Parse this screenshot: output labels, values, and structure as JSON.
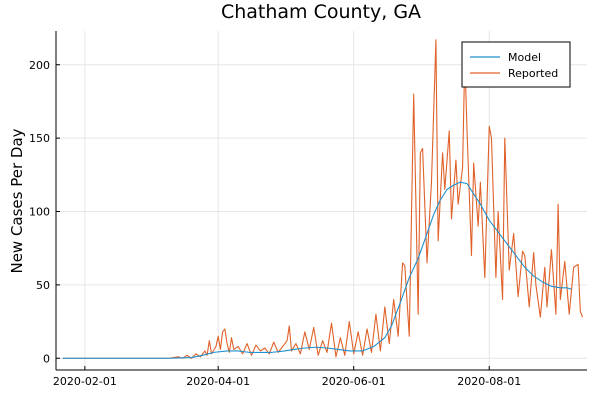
{
  "chart_data": {
    "type": "line",
    "title": "Chatham County, GA",
    "xlabel": "",
    "ylabel": "New Cases Per Day",
    "x_axis": {
      "type": "date",
      "range": [
        "2020-01-19",
        "2020-09-14"
      ],
      "ticks": [
        "2020-02-01",
        "2020-04-01",
        "2020-06-01",
        "2020-08-01"
      ]
    },
    "y_axis": {
      "range": [
        -8,
        223
      ],
      "ticks": [
        0,
        50,
        100,
        150,
        200
      ]
    },
    "grid": true,
    "legend": {
      "placement": "top-right"
    },
    "series": [
      {
        "name": "Model",
        "color": "#1e90cc",
        "points": [
          [
            "2020-01-22",
            0
          ],
          [
            "2020-02-15",
            0
          ],
          [
            "2020-03-10",
            0
          ],
          [
            "2020-03-20",
            0.5
          ],
          [
            "2020-03-25",
            2
          ],
          [
            "2020-03-30",
            4
          ],
          [
            "2020-04-05",
            5
          ],
          [
            "2020-04-10",
            5
          ],
          [
            "2020-04-15",
            4
          ],
          [
            "2020-04-20",
            4
          ],
          [
            "2020-04-25",
            4
          ],
          [
            "2020-05-01",
            5
          ],
          [
            "2020-05-05",
            6
          ],
          [
            "2020-05-10",
            7
          ],
          [
            "2020-05-15",
            7.5
          ],
          [
            "2020-05-20",
            7
          ],
          [
            "2020-05-25",
            6
          ],
          [
            "2020-05-30",
            5
          ],
          [
            "2020-06-05",
            5
          ],
          [
            "2020-06-10",
            8
          ],
          [
            "2020-06-15",
            14
          ],
          [
            "2020-06-18",
            22
          ],
          [
            "2020-06-22",
            38
          ],
          [
            "2020-06-26",
            55
          ],
          [
            "2020-06-30",
            68
          ],
          [
            "2020-07-04",
            85
          ],
          [
            "2020-07-07",
            98
          ],
          [
            "2020-07-10",
            108
          ],
          [
            "2020-07-13",
            115
          ],
          [
            "2020-07-16",
            118
          ],
          [
            "2020-07-19",
            120
          ],
          [
            "2020-07-22",
            119
          ],
          [
            "2020-07-25",
            112
          ],
          [
            "2020-07-28",
            105
          ],
          [
            "2020-08-01",
            94
          ],
          [
            "2020-08-05",
            86
          ],
          [
            "2020-08-09",
            78
          ],
          [
            "2020-08-13",
            70
          ],
          [
            "2020-08-17",
            62
          ],
          [
            "2020-08-21",
            56
          ],
          [
            "2020-08-25",
            52
          ],
          [
            "2020-08-29",
            49
          ],
          [
            "2020-09-02",
            48
          ],
          [
            "2020-09-05",
            48
          ],
          [
            "2020-09-07",
            47
          ]
        ]
      },
      {
        "name": "Reported",
        "color": "#e0622a",
        "points": [
          [
            "2020-01-22",
            0
          ],
          [
            "2020-03-10",
            0
          ],
          [
            "2020-03-14",
            1
          ],
          [
            "2020-03-16",
            0
          ],
          [
            "2020-03-18",
            2
          ],
          [
            "2020-03-20",
            0
          ],
          [
            "2020-03-22",
            3
          ],
          [
            "2020-03-24",
            1
          ],
          [
            "2020-03-26",
            5
          ],
          [
            "2020-03-27",
            2
          ],
          [
            "2020-03-28",
            12
          ],
          [
            "2020-03-29",
            3
          ],
          [
            "2020-03-31",
            8
          ],
          [
            "2020-04-01",
            15
          ],
          [
            "2020-04-02",
            6
          ],
          [
            "2020-04-03",
            18
          ],
          [
            "2020-04-04",
            20
          ],
          [
            "2020-04-05",
            10
          ],
          [
            "2020-04-06",
            4
          ],
          [
            "2020-04-07",
            14
          ],
          [
            "2020-04-08",
            6
          ],
          [
            "2020-04-10",
            8
          ],
          [
            "2020-04-12",
            3
          ],
          [
            "2020-04-14",
            10
          ],
          [
            "2020-04-16",
            2
          ],
          [
            "2020-04-18",
            9
          ],
          [
            "2020-04-20",
            5
          ],
          [
            "2020-04-22",
            7
          ],
          [
            "2020-04-24",
            3
          ],
          [
            "2020-04-26",
            11
          ],
          [
            "2020-04-28",
            4
          ],
          [
            "2020-04-30",
            8
          ],
          [
            "2020-05-02",
            12
          ],
          [
            "2020-05-03",
            22
          ],
          [
            "2020-05-04",
            5
          ],
          [
            "2020-05-06",
            10
          ],
          [
            "2020-05-08",
            3
          ],
          [
            "2020-05-10",
            18
          ],
          [
            "2020-05-12",
            6
          ],
          [
            "2020-05-14",
            21
          ],
          [
            "2020-05-16",
            2
          ],
          [
            "2020-05-18",
            12
          ],
          [
            "2020-05-20",
            4
          ],
          [
            "2020-05-22",
            24
          ],
          [
            "2020-05-24",
            1
          ],
          [
            "2020-05-26",
            14
          ],
          [
            "2020-05-28",
            2
          ],
          [
            "2020-05-30",
            25
          ],
          [
            "2020-06-01",
            3
          ],
          [
            "2020-06-03",
            18
          ],
          [
            "2020-06-05",
            2
          ],
          [
            "2020-06-07",
            20
          ],
          [
            "2020-06-09",
            4
          ],
          [
            "2020-06-11",
            30
          ],
          [
            "2020-06-13",
            5
          ],
          [
            "2020-06-15",
            35
          ],
          [
            "2020-06-17",
            10
          ],
          [
            "2020-06-19",
            40
          ],
          [
            "2020-06-21",
            15
          ],
          [
            "2020-06-23",
            65
          ],
          [
            "2020-06-24",
            63
          ],
          [
            "2020-06-26",
            15
          ],
          [
            "2020-06-28",
            180
          ],
          [
            "2020-06-30",
            30
          ],
          [
            "2020-07-01",
            140
          ],
          [
            "2020-07-02",
            143
          ],
          [
            "2020-07-04",
            65
          ],
          [
            "2020-07-06",
            120
          ],
          [
            "2020-07-08",
            217
          ],
          [
            "2020-07-09",
            80
          ],
          [
            "2020-07-11",
            140
          ],
          [
            "2020-07-12",
            115
          ],
          [
            "2020-07-14",
            155
          ],
          [
            "2020-07-15",
            95
          ],
          [
            "2020-07-17",
            135
          ],
          [
            "2020-07-18",
            105
          ],
          [
            "2020-07-20",
            130
          ],
          [
            "2020-07-21",
            205
          ],
          [
            "2020-07-22",
            155
          ],
          [
            "2020-07-24",
            70
          ],
          [
            "2020-07-25",
            133
          ],
          [
            "2020-07-27",
            90
          ],
          [
            "2020-07-28",
            120
          ],
          [
            "2020-07-30",
            55
          ],
          [
            "2020-08-01",
            158
          ],
          [
            "2020-08-02",
            150
          ],
          [
            "2020-08-04",
            55
          ],
          [
            "2020-08-05",
            100
          ],
          [
            "2020-08-07",
            40
          ],
          [
            "2020-08-08",
            150
          ],
          [
            "2020-08-10",
            60
          ],
          [
            "2020-08-12",
            85
          ],
          [
            "2020-08-14",
            42
          ],
          [
            "2020-08-16",
            73
          ],
          [
            "2020-08-17",
            70
          ],
          [
            "2020-08-19",
            35
          ],
          [
            "2020-08-21",
            72
          ],
          [
            "2020-08-22",
            50
          ],
          [
            "2020-08-24",
            28
          ],
          [
            "2020-08-26",
            62
          ],
          [
            "2020-08-27",
            35
          ],
          [
            "2020-08-29",
            74
          ],
          [
            "2020-08-31",
            30
          ],
          [
            "2020-09-01",
            105
          ],
          [
            "2020-09-02",
            40
          ],
          [
            "2020-09-04",
            66
          ],
          [
            "2020-09-06",
            30
          ],
          [
            "2020-09-08",
            62
          ],
          [
            "2020-09-10",
            64
          ],
          [
            "2020-09-11",
            32
          ],
          [
            "2020-09-12",
            28
          ]
        ]
      }
    ]
  }
}
